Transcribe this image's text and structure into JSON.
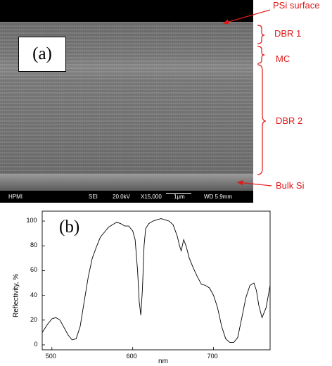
{
  "sem": {
    "panel_label": "(a)",
    "info_bar": {
      "instrument": "HPMI",
      "detector": "SEI",
      "voltage": "20.0kV",
      "magnification": "X15,000",
      "scale": "1μm",
      "working_distance": "WD 5.9mm"
    }
  },
  "annotations": {
    "psi_surface": "PSi surface",
    "dbr1": "DBR 1",
    "mc": "MC",
    "dbr2": "DBR 2",
    "bulk_si": "Bulk Si",
    "color": "#e01818"
  },
  "chart_data": {
    "type": "line",
    "panel_label": "(b)",
    "xlabel": "nm",
    "ylabel": "Reflectivity, %",
    "xlim": [
      488,
      770
    ],
    "ylim": [
      -4,
      108
    ],
    "xticks": [
      500,
      600,
      700
    ],
    "yticks": [
      0,
      20,
      40,
      60,
      80,
      100
    ],
    "grid": false,
    "series": [
      {
        "x": [
          488,
          495,
          500,
          505,
          510,
          515,
          520,
          525,
          530,
          535,
          540,
          545,
          550,
          555,
          560,
          565,
          570,
          575,
          580,
          585,
          590,
          595,
          600,
          603,
          606,
          608,
          610,
          612,
          614,
          616,
          620,
          625,
          630,
          635,
          640,
          645,
          650,
          655,
          658,
          660,
          663,
          666,
          670,
          675,
          680,
          685,
          690,
          695,
          700,
          705,
          710,
          715,
          720,
          725,
          730,
          735,
          740,
          745,
          750,
          753,
          756,
          760,
          765,
          770
        ],
        "y": [
          10,
          17,
          21,
          22,
          20,
          14,
          8,
          4,
          5,
          15,
          35,
          55,
          70,
          79,
          87,
          91,
          95,
          97,
          99,
          98,
          96,
          96,
          92,
          85,
          60,
          35,
          24,
          45,
          80,
          94,
          98,
          100,
          101,
          102,
          101,
          100,
          97,
          88,
          80,
          76,
          85,
          80,
          70,
          62,
          55,
          49,
          48,
          46,
          40,
          30,
          15,
          5,
          2,
          2,
          6,
          22,
          38,
          48,
          50,
          44,
          32,
          22,
          30,
          48
        ]
      }
    ]
  }
}
